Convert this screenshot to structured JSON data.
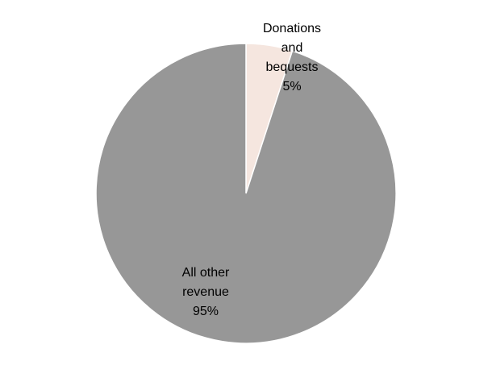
{
  "chart_data": {
    "type": "pie",
    "title": "",
    "slices": [
      {
        "label_lines": [
          "Donations",
          "and",
          "bequests"
        ],
        "percent_label": "5%",
        "value": 5,
        "color": "#f5e6df"
      },
      {
        "label_lines": [
          "All other",
          "revenue"
        ],
        "percent_label": "95%",
        "value": 95,
        "color": "#979797"
      }
    ],
    "start_angle_deg": 0,
    "direction": "clockwise",
    "legend": "none"
  }
}
